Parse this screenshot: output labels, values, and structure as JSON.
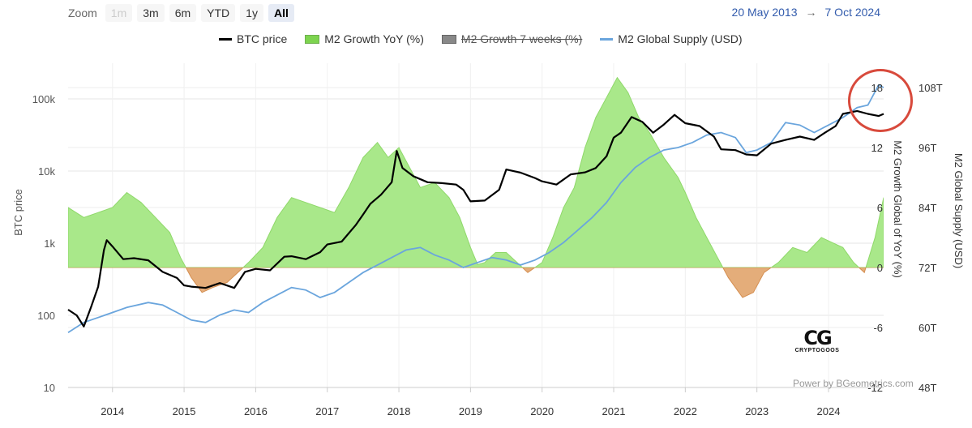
{
  "toolbar": {
    "zoom_label": "Zoom",
    "zoom_buttons": [
      "1m",
      "3m",
      "6m",
      "YTD",
      "1y",
      "All"
    ],
    "selected": "All",
    "disabled": [
      "1m"
    ],
    "range_start": "20 May 2013",
    "range_arrow": "→",
    "range_end": "7 Oct 2024"
  },
  "credit": "Power by BGeometrics.com",
  "watermark": {
    "mark": "CG",
    "text": "CRYPTOGOOS"
  },
  "chart_data": {
    "type": "line",
    "xlabel": "",
    "x_ticks": [
      "2014",
      "2015",
      "2016",
      "2017",
      "2018",
      "2019",
      "2020",
      "2021",
      "2022",
      "2023",
      "2024"
    ],
    "x_range": [
      2013.38,
      2024.77
    ],
    "axes": {
      "btc": {
        "label": "BTC price",
        "scale": "log",
        "ticks": [
          "10",
          "100",
          "1k",
          "10k",
          "100k"
        ],
        "range": [
          10,
          200000
        ]
      },
      "m2_growth": {
        "label": "M2 Growth Global of YoY (%)",
        "ticks": [
          "-12",
          "-6",
          "0",
          "6",
          "12",
          "18"
        ],
        "range": [
          -12,
          20
        ]
      },
      "m2_supply": {
        "label": "M2 Global Supply (USD)",
        "ticks": [
          "48T",
          "60T",
          "72T",
          "84T",
          "96T",
          "108T"
        ],
        "range": [
          48,
          110
        ]
      }
    },
    "grid": true,
    "legend_position": "top",
    "series": [
      {
        "name": "BTC price",
        "axis": "btc",
        "color": "#000000",
        "visible": true,
        "x": [
          2013.38,
          2013.5,
          2013.6,
          2013.7,
          2013.8,
          2013.88,
          2013.92,
          2014.0,
          2014.15,
          2014.3,
          2014.5,
          2014.7,
          2014.9,
          2015.0,
          2015.1,
          2015.3,
          2015.5,
          2015.7,
          2015.85,
          2016.0,
          2016.2,
          2016.4,
          2016.5,
          2016.7,
          2016.9,
          2017.0,
          2017.2,
          2017.4,
          2017.5,
          2017.6,
          2017.75,
          2017.9,
          2017.97,
          2018.05,
          2018.2,
          2018.4,
          2018.6,
          2018.8,
          2018.9,
          2019.0,
          2019.2,
          2019.4,
          2019.5,
          2019.7,
          2019.9,
          2020.0,
          2020.2,
          2020.4,
          2020.6,
          2020.75,
          2020.9,
          2021.0,
          2021.1,
          2021.25,
          2021.4,
          2021.55,
          2021.7,
          2021.85,
          2022.0,
          2022.2,
          2022.4,
          2022.5,
          2022.7,
          2022.85,
          2023.0,
          2023.2,
          2023.4,
          2023.6,
          2023.8,
          2023.95,
          2024.1,
          2024.2,
          2024.4,
          2024.55,
          2024.7,
          2024.77
        ],
        "values": [
          120,
          100,
          70,
          130,
          250,
          800,
          1100,
          900,
          600,
          620,
          580,
          400,
          330,
          260,
          250,
          240,
          280,
          240,
          400,
          440,
          420,
          650,
          660,
          600,
          750,
          960,
          1050,
          1800,
          2500,
          3500,
          4700,
          7000,
          19000,
          11000,
          8500,
          7000,
          6800,
          6500,
          5500,
          3800,
          3900,
          5500,
          10500,
          9500,
          8000,
          7200,
          6500,
          9000,
          9600,
          11000,
          16000,
          29000,
          34000,
          56000,
          48000,
          34000,
          44000,
          60000,
          46000,
          42000,
          30000,
          20000,
          19500,
          17000,
          16500,
          24000,
          27000,
          30000,
          27000,
          34000,
          42000,
          62000,
          68000,
          62000,
          58000,
          62000
        ]
      },
      {
        "name": "M2 Growth YoY (%)",
        "axis": "m2_growth",
        "color": "#7dd44f",
        "visible": true,
        "x": [
          2013.38,
          2013.6,
          2013.8,
          2014.0,
          2014.2,
          2014.4,
          2014.6,
          2014.8,
          2014.95,
          2015.1,
          2015.25,
          2015.4,
          2015.6,
          2015.75,
          2015.9,
          2016.1,
          2016.3,
          2016.5,
          2016.7,
          2016.9,
          2017.1,
          2017.3,
          2017.5,
          2017.7,
          2017.85,
          2018.0,
          2018.15,
          2018.3,
          2018.5,
          2018.7,
          2018.85,
          2019.0,
          2019.1,
          2019.2,
          2019.35,
          2019.5,
          2019.65,
          2019.8,
          2020.0,
          2020.15,
          2020.3,
          2020.45,
          2020.6,
          2020.75,
          2020.9,
          2021.05,
          2021.2,
          2021.35,
          2021.5,
          2021.7,
          2021.9,
          2022.0,
          2022.15,
          2022.3,
          2022.45,
          2022.6,
          2022.8,
          2022.95,
          2023.1,
          2023.3,
          2023.5,
          2023.7,
          2023.9,
          2024.05,
          2024.2,
          2024.35,
          2024.5,
          2024.65,
          2024.77
        ],
        "values": [
          6,
          5,
          5.5,
          6,
          7.5,
          6.5,
          5,
          3.5,
          1,
          -1,
          -2.5,
          -2,
          -1.5,
          -0.5,
          0.5,
          2,
          5,
          7,
          6.5,
          6,
          5.5,
          8,
          11,
          12.5,
          11,
          12,
          10,
          8,
          8.5,
          7,
          5,
          2,
          0.3,
          0.5,
          1.5,
          1.5,
          0.5,
          -0.5,
          0.5,
          3,
          6,
          8,
          12,
          15,
          17,
          19,
          17.5,
          15,
          13.5,
          11,
          9,
          7.5,
          5,
          3,
          1,
          -1,
          -3,
          -2.5,
          -0.5,
          0.5,
          2,
          1.5,
          3,
          2.5,
          2,
          0.5,
          -0.5,
          3,
          7
        ]
      },
      {
        "name": "M2 Growth 7 weeks (%)",
        "axis": "m2_growth",
        "color": "#888888",
        "visible": false,
        "x": [],
        "values": []
      },
      {
        "name": "M2 Global Supply (USD)",
        "axis": "m2_supply",
        "color": "#6aa5dd",
        "visible": true,
        "x": [
          2013.38,
          2013.6,
          2013.8,
          2014.0,
          2014.2,
          2014.5,
          2014.7,
          2014.9,
          2015.1,
          2015.3,
          2015.5,
          2015.7,
          2015.9,
          2016.1,
          2016.3,
          2016.5,
          2016.7,
          2016.9,
          2017.1,
          2017.3,
          2017.5,
          2017.7,
          2017.9,
          2018.1,
          2018.3,
          2018.5,
          2018.7,
          2018.9,
          2019.1,
          2019.3,
          2019.5,
          2019.7,
          2019.9,
          2020.1,
          2020.3,
          2020.5,
          2020.7,
          2020.9,
          2021.1,
          2021.3,
          2021.5,
          2021.7,
          2021.9,
          2022.1,
          2022.3,
          2022.5,
          2022.7,
          2022.85,
          2023.0,
          2023.2,
          2023.4,
          2023.6,
          2023.8,
          2024.0,
          2024.2,
          2024.4,
          2024.55,
          2024.7,
          2024.77
        ],
        "values": [
          59,
          61,
          62,
          63,
          64,
          65,
          64.5,
          63,
          61.5,
          61,
          62.5,
          63.5,
          63,
          65,
          66.5,
          68,
          67.5,
          66,
          67,
          69,
          71,
          72.5,
          74,
          75.5,
          76,
          74.5,
          73.5,
          72,
          73,
          74,
          73.5,
          72.5,
          73.5,
          75,
          77,
          79.5,
          82,
          85,
          89,
          92,
          94,
          95.5,
          96,
          97,
          98.5,
          99,
          98,
          95,
          95.5,
          97,
          101,
          100.5,
          99,
          100.5,
          102,
          104,
          104.5,
          108.5,
          108
        ]
      }
    ],
    "annotations": [
      "red circle highlighting the latest values"
    ]
  }
}
